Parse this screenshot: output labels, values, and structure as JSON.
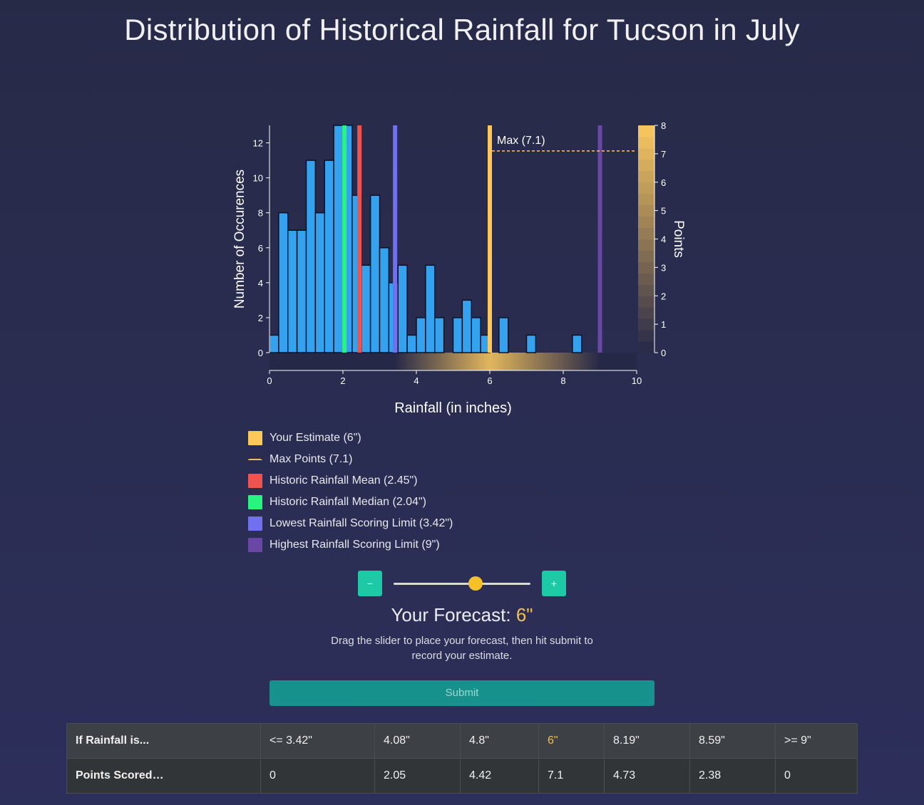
{
  "title": "Distribution of Historical Rainfall for Tucson in July",
  "chart_data": {
    "type": "bar",
    "xlabel": "Rainfall (in inches)",
    "ylabel": "Number of Occurences",
    "y2label": "Points",
    "xlim": [
      0,
      10
    ],
    "ylim": [
      0,
      13
    ],
    "y2lim": [
      0,
      8
    ],
    "x_ticks": [
      0,
      2,
      4,
      6,
      8,
      10
    ],
    "y_ticks": [
      0,
      2,
      4,
      6,
      8,
      10,
      12
    ],
    "y2_ticks": [
      0,
      1,
      2,
      3,
      4,
      5,
      6,
      7,
      8
    ],
    "bin_width": 0.25,
    "bins": [
      {
        "x": 0.0,
        "count": 1
      },
      {
        "x": 0.25,
        "count": 8
      },
      {
        "x": 0.5,
        "count": 7
      },
      {
        "x": 0.75,
        "count": 7
      },
      {
        "x": 1.0,
        "count": 11
      },
      {
        "x": 1.25,
        "count": 8
      },
      {
        "x": 1.5,
        "count": 11
      },
      {
        "x": 1.75,
        "count": 13
      },
      {
        "x": 2.0,
        "count": 13
      },
      {
        "x": 2.25,
        "count": 9
      },
      {
        "x": 2.5,
        "count": 5
      },
      {
        "x": 2.75,
        "count": 9
      },
      {
        "x": 3.0,
        "count": 6
      },
      {
        "x": 3.25,
        "count": 4
      },
      {
        "x": 3.5,
        "count": 5
      },
      {
        "x": 3.75,
        "count": 1
      },
      {
        "x": 4.0,
        "count": 2
      },
      {
        "x": 4.25,
        "count": 5
      },
      {
        "x": 4.5,
        "count": 2
      },
      {
        "x": 4.75,
        "count": 0
      },
      {
        "x": 5.0,
        "count": 2
      },
      {
        "x": 5.25,
        "count": 3
      },
      {
        "x": 5.5,
        "count": 2
      },
      {
        "x": 5.75,
        "count": 1
      },
      {
        "x": 6.0,
        "count": 0
      },
      {
        "x": 6.25,
        "count": 2
      },
      {
        "x": 6.5,
        "count": 0
      },
      {
        "x": 6.75,
        "count": 0
      },
      {
        "x": 7.0,
        "count": 1
      },
      {
        "x": 7.25,
        "count": 0
      },
      {
        "x": 7.5,
        "count": 0
      },
      {
        "x": 7.75,
        "count": 0
      },
      {
        "x": 8.0,
        "count": 0
      },
      {
        "x": 8.25,
        "count": 1
      },
      {
        "x": 8.5,
        "count": 0
      },
      {
        "x": 8.75,
        "count": 0
      },
      {
        "x": 9.0,
        "count": 0
      },
      {
        "x": 9.25,
        "count": 0
      },
      {
        "x": 9.5,
        "count": 0
      },
      {
        "x": 9.75,
        "count": 0
      }
    ],
    "vlines": [
      {
        "label": "Your Estimate (6\")",
        "x": 6.0,
        "color": "#fdc85a"
      },
      {
        "label": "Historic Rainfall Mean (2.45\")",
        "x": 2.45,
        "color": "#ef5350"
      },
      {
        "label": "Historic Rainfall Median (2.04\")",
        "x": 2.04,
        "color": "#27f57f"
      },
      {
        "label": "Lowest Rainfall Scoring Limit (3.42\")",
        "x": 3.42,
        "color": "#7070f0"
      },
      {
        "label": "Highest Rainfall Scoring Limit (9\")",
        "x": 9.0,
        "color": "#6a47a6"
      }
    ],
    "max_points": {
      "label": "Max Points (7.1)",
      "annotation": "Max (7.1)",
      "value": 7.1,
      "color": "#fdc85a"
    },
    "points_curve": {
      "from": 3.42,
      "peak": 6.0,
      "to": 9.0,
      "max": 7.1
    },
    "bar_color": "#35a2f0",
    "legend_position": "below"
  },
  "legend": [
    {
      "label": "Your Estimate (6\")",
      "color": "#fdc85a"
    },
    {
      "label": "Max Points (7.1)",
      "color": "#f5c04a",
      "dashed": true
    },
    {
      "label": "Historic Rainfall Mean (2.45\")",
      "color": "#ef5350"
    },
    {
      "label": "Historic Rainfall Median (2.04\")",
      "color": "#27f57f"
    },
    {
      "label": "Lowest Rainfall Scoring Limit (3.42\")",
      "color": "#7070f0"
    },
    {
      "label": "Highest Rainfall Scoring Limit (9\")",
      "color": "#6a47a6"
    }
  ],
  "controls": {
    "minus": "−",
    "plus": "+",
    "slider_min": 0,
    "slider_max": 10,
    "slider_value": 6
  },
  "forecast": {
    "label": "Your Forecast: ",
    "value": "6\""
  },
  "help_text": "Drag the slider to place your forecast, then hit submit to record your estimate.",
  "submit_label": "Submit",
  "table": {
    "row1": [
      "If Rainfall is...",
      "<= 3.42\"",
      "4.08\"",
      "4.8\"",
      "6\"",
      "8.19\"",
      "8.59\"",
      ">= 9\""
    ],
    "row2": [
      "Points Scored…",
      "0",
      "2.05",
      "4.42",
      "7.1",
      "4.73",
      "2.38",
      "0"
    ]
  }
}
